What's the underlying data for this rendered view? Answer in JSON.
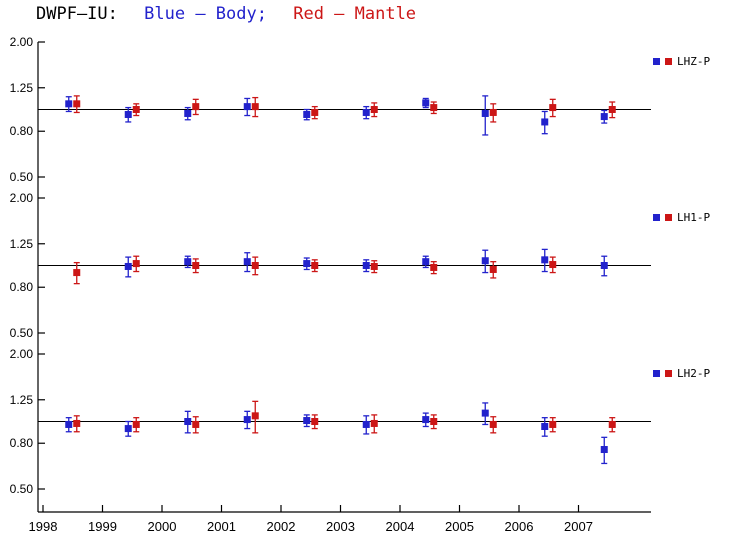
{
  "title": {
    "station": "DWPF–IU:",
    "body": "Blue – Body;",
    "mantle": "Red – Mantle"
  },
  "colors": {
    "body": "#2222cc",
    "mantle": "#cc1616",
    "axis": "#000000"
  },
  "x_axis": {
    "ticks": [
      1998,
      1999,
      2000,
      2001,
      2002,
      2003,
      2004,
      2005,
      2006,
      2007
    ],
    "labels": [
      "1998",
      "1999",
      "2000",
      "2001",
      "2002",
      "2003",
      "2004",
      "2005",
      "2006",
      "2007"
    ]
  },
  "chart_data": [
    {
      "type": "scatter",
      "name": "LHZ-P",
      "yscale": "log",
      "ylim": [
        0.5,
        2.0
      ],
      "ytick_values": [
        2.0,
        1.25,
        0.8,
        0.5
      ],
      "ytick_labels": [
        "2.00",
        "1.25",
        "0.80",
        "0.50"
      ],
      "refline": 1.0,
      "x": [
        1998.5,
        1999.5,
        2000.5,
        2001.5,
        2002.5,
        2003.5,
        2004.5,
        2005.5,
        2006.5,
        2007.5
      ],
      "series": [
        {
          "name": "Body",
          "color_key": "body",
          "values": [
            1.06,
            0.95,
            0.96,
            1.03,
            0.95,
            0.97,
            1.07,
            0.96,
            0.88,
            0.93
          ],
          "errors": [
            0.08,
            0.07,
            0.06,
            0.09,
            0.05,
            0.06,
            0.05,
            0.19,
            0.1,
            0.06
          ]
        },
        {
          "name": "Mantle",
          "color_key": "mantle",
          "values": [
            1.06,
            1.0,
            1.03,
            1.03,
            0.97,
            1.0,
            1.02,
            0.97,
            1.02,
            1.0
          ],
          "errors": [
            0.09,
            0.06,
            0.08,
            0.1,
            0.06,
            0.07,
            0.06,
            0.09,
            0.09,
            0.08
          ]
        }
      ]
    },
    {
      "type": "scatter",
      "name": "LH1-P",
      "yscale": "log",
      "ylim": [
        0.5,
        2.0
      ],
      "ytick_values": [
        2.0,
        1.25,
        0.8,
        0.5
      ],
      "ytick_labels": [
        "2.00",
        "1.25",
        "0.80",
        "0.50"
      ],
      "refline": 1.0,
      "x": [
        1998.5,
        1999.5,
        2000.5,
        2001.5,
        2002.5,
        2003.5,
        2004.5,
        2005.5,
        2006.5,
        2007.5
      ],
      "series": [
        {
          "name": "Body",
          "color_key": "body",
          "values": [
            null,
            0.99,
            1.04,
            1.04,
            1.02,
            1.0,
            1.04,
            1.05,
            1.06,
            1.0
          ],
          "errors": [
            null,
            0.1,
            0.06,
            0.1,
            0.06,
            0.06,
            0.06,
            0.12,
            0.12,
            0.1
          ]
        },
        {
          "name": "Mantle",
          "color_key": "mantle",
          "values": [
            0.93,
            1.02,
            1.0,
            1.0,
            1.0,
            0.99,
            0.98,
            0.96,
            1.01,
            null
          ],
          "errors": [
            0.1,
            0.08,
            0.07,
            0.09,
            0.06,
            0.06,
            0.06,
            0.08,
            0.08,
            null
          ]
        }
      ]
    },
    {
      "type": "scatter",
      "name": "LH2-P",
      "yscale": "log",
      "ylim": [
        0.5,
        2.0
      ],
      "ytick_values": [
        2.0,
        1.25,
        0.8,
        0.5
      ],
      "ytick_labels": [
        "2.00",
        "1.25",
        "0.80",
        "0.50"
      ],
      "refline": 1.0,
      "x": [
        1998.5,
        1999.5,
        2000.5,
        2001.5,
        2002.5,
        2003.5,
        2004.5,
        2005.5,
        2006.5,
        2007.5
      ],
      "series": [
        {
          "name": "Body",
          "color_key": "body",
          "values": [
            0.97,
            0.93,
            1.0,
            1.02,
            1.01,
            0.97,
            1.02,
            1.09,
            0.95,
            0.75
          ],
          "errors": [
            0.07,
            0.07,
            0.11,
            0.09,
            0.06,
            0.09,
            0.07,
            0.12,
            0.09,
            0.1
          ]
        },
        {
          "name": "Mantle",
          "color_key": "mantle",
          "values": [
            0.98,
            0.97,
            0.97,
            1.06,
            1.0,
            0.98,
            1.0,
            0.97,
            0.97,
            0.97
          ],
          "errors": [
            0.08,
            0.07,
            0.08,
            0.17,
            0.07,
            0.09,
            0.07,
            0.08,
            0.07,
            0.07
          ]
        }
      ]
    }
  ]
}
